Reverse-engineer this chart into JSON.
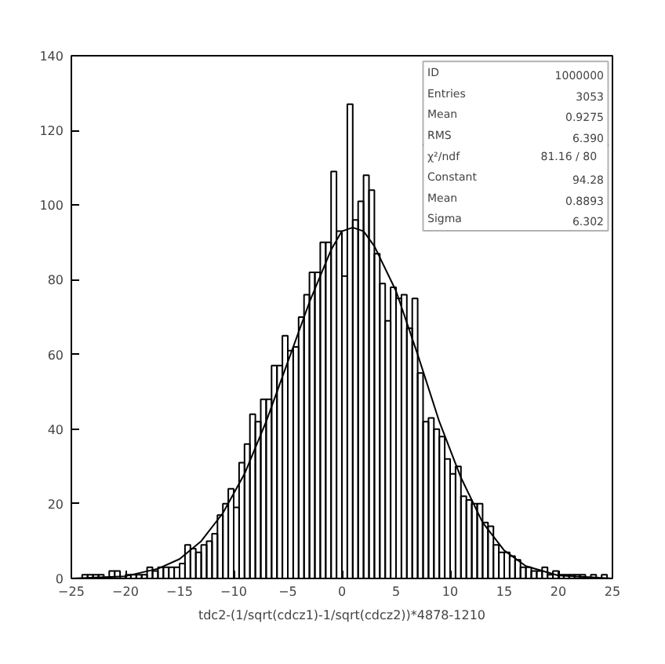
{
  "chart_data": {
    "type": "histogram",
    "xlabel": "tdc2-(1/sqrt(cdcz1)-1/sqrt(cdcz2))*4878-1210",
    "bins": [
      -25,
      -24.5,
      -24,
      -23.5,
      -23,
      -22.5,
      -22,
      -21.5,
      -21,
      -20.5,
      -20,
      -19.5,
      -19,
      -18.5,
      -18,
      -17.5,
      -17,
      -16.5,
      -16,
      -15.5,
      -15,
      -14.5,
      -14,
      -13.5,
      -13,
      -12.5,
      -12,
      -11.5,
      -11,
      -10.5,
      -10,
      -9.5,
      -9,
      -8.5,
      -8,
      -7.5,
      -7,
      -6.5,
      -6,
      -5.5,
      -5,
      -4.5,
      -4,
      -3.5,
      -3,
      -2.5,
      -2,
      -1.5,
      -1,
      -0.5,
      0,
      0.5,
      1,
      1.5,
      2,
      2.5,
      3,
      3.5,
      4,
      4.5,
      5,
      5.5,
      6,
      6.5,
      7,
      7.5,
      8,
      8.5,
      9,
      9.5,
      10,
      10.5,
      11,
      11.5,
      12,
      12.5,
      13,
      13.5,
      14,
      14.5,
      15,
      15.5,
      16,
      16.5,
      17,
      17.5,
      18,
      18.5,
      19,
      19.5,
      20,
      20.5,
      21,
      21.5,
      22,
      22.5,
      23,
      23.5,
      24,
      24.5,
      25
    ],
    "values": [
      0,
      0,
      1,
      1,
      1,
      1,
      0,
      2,
      2,
      0,
      1,
      1,
      1,
      1,
      3,
      2,
      3,
      3,
      3,
      3,
      4,
      9,
      8,
      7,
      9,
      10,
      12,
      17,
      20,
      24,
      19,
      31,
      36,
      44,
      42,
      48,
      48,
      57,
      57,
      65,
      61,
      62,
      70,
      76,
      82,
      82,
      90,
      90,
      109,
      93,
      81,
      127,
      96,
      101,
      108,
      104,
      87,
      79,
      69,
      78,
      75,
      76,
      67,
      75,
      55,
      42,
      43,
      40,
      38,
      32,
      28,
      30,
      22,
      21,
      20,
      20,
      15,
      14,
      9,
      7,
      7,
      6,
      5,
      3,
      3,
      2,
      2,
      3,
      1,
      2,
      1,
      1,
      1,
      1,
      1,
      0,
      1,
      0,
      1,
      0
    ],
    "color": "#000000",
    "series": [
      {
        "type": "line",
        "color": "#000000",
        "x": [
          -25,
          -20,
          -17,
          -15,
          -13,
          -11,
          -9,
          -7,
          -5,
          -3,
          -1,
          0,
          1,
          2,
          3,
          5,
          7,
          9,
          11,
          13,
          15,
          17,
          20,
          25
        ],
        "values": [
          0,
          0.6,
          2.6,
          5.2,
          10,
          17.5,
          28,
          42,
          58,
          74,
          88,
          93,
          94,
          93,
          89,
          77,
          60,
          42,
          27,
          15,
          7.5,
          3.3,
          0.8,
          0
        ]
      }
    ],
    "xlim": [
      -25,
      25
    ],
    "ylim": [
      0,
      140
    ],
    "xticks": [
      -25,
      -20,
      -15,
      -10,
      -5,
      0,
      5,
      10,
      15,
      20,
      25
    ],
    "yticks": [
      0,
      20,
      40,
      60,
      80,
      100,
      120,
      140
    ],
    "grid": false,
    "annotations": [
      "ID",
      "1000000",
      "Entries",
      "3053",
      "Mean",
      "0.9275",
      "RMS",
      "6.390",
      "χ²/ndf",
      "81.16  /  80",
      "Constant",
      "94.28",
      "Mean",
      "0.8893",
      "Sigma",
      "6.302"
    ]
  }
}
